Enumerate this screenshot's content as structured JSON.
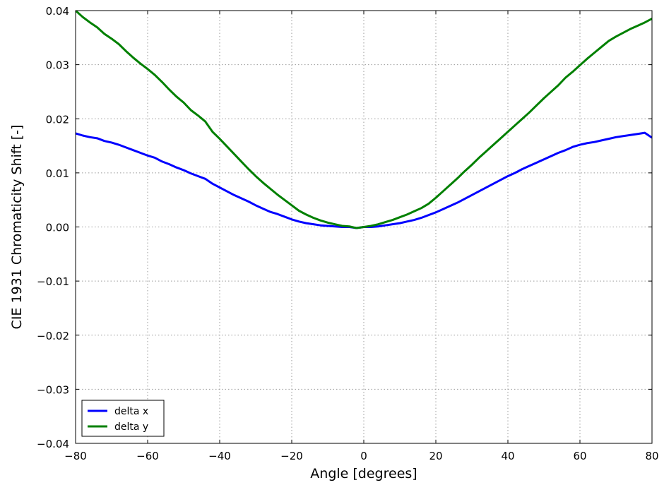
{
  "chart_data": {
    "type": "line",
    "title": "",
    "xlabel": "Angle [degrees]",
    "ylabel": "CIE 1931 Chromaticity Shift  [-]",
    "xlim": [
      -80,
      80
    ],
    "ylim": [
      -0.04,
      0.04
    ],
    "xticks": [
      -80,
      -60,
      -40,
      -20,
      0,
      20,
      40,
      60,
      80
    ],
    "xtick_labels": [
      "−80",
      "−60",
      "−40",
      "−20",
      "0",
      "20",
      "40",
      "60",
      "80"
    ],
    "yticks": [
      -0.04,
      -0.03,
      -0.02,
      -0.01,
      0.0,
      0.01,
      0.02,
      0.03,
      0.04
    ],
    "ytick_labels": [
      "−0.04",
      "−0.03",
      "−0.02",
      "−0.01",
      "0.00",
      "0.01",
      "0.02",
      "0.03",
      "0.04"
    ],
    "grid": true,
    "legend_position": "lower-left",
    "series": [
      {
        "name": "delta x",
        "color": "#0000ff",
        "x": [
          -80,
          -78,
          -76,
          -74,
          -72,
          -70,
          -68,
          -66,
          -64,
          -62,
          -60,
          -58,
          -56,
          -54,
          -52,
          -50,
          -48,
          -46,
          -44,
          -42,
          -40,
          -38,
          -36,
          -34,
          -32,
          -30,
          -28,
          -26,
          -24,
          -22,
          -20,
          -18,
          -16,
          -14,
          -12,
          -10,
          -8,
          -6,
          -4,
          -2,
          0,
          2,
          4,
          6,
          8,
          10,
          12,
          14,
          16,
          18,
          20,
          22,
          24,
          26,
          28,
          30,
          32,
          34,
          36,
          38,
          40,
          42,
          44,
          46,
          48,
          50,
          52,
          54,
          56,
          58,
          60,
          62,
          64,
          66,
          68,
          70,
          72,
          74,
          76,
          78,
          80
        ],
        "y": [
          0.0173,
          0.0169,
          0.0166,
          0.0164,
          0.0159,
          0.0156,
          0.0152,
          0.0147,
          0.0142,
          0.0137,
          0.0132,
          0.0128,
          0.0121,
          0.0116,
          0.011,
          0.0105,
          0.0099,
          0.0094,
          0.0089,
          0.008,
          0.0073,
          0.0066,
          0.0059,
          0.0053,
          0.0047,
          0.004,
          0.0034,
          0.0028,
          0.0024,
          0.0019,
          0.0014,
          0.001,
          0.0007,
          0.0005,
          0.0003,
          0.0002,
          0.0001,
          0.0,
          0.0,
          -0.0002,
          0.0,
          0.0,
          0.0001,
          0.0003,
          0.0005,
          0.0007,
          0.001,
          0.0013,
          0.0017,
          0.0022,
          0.0027,
          0.0033,
          0.0039,
          0.0045,
          0.0052,
          0.0059,
          0.0066,
          0.0073,
          0.008,
          0.0087,
          0.0094,
          0.01,
          0.0107,
          0.0113,
          0.0119,
          0.0125,
          0.0131,
          0.0137,
          0.0142,
          0.0148,
          0.0152,
          0.0155,
          0.0157,
          0.016,
          0.0163,
          0.0166,
          0.0168,
          0.017,
          0.0172,
          0.0174,
          0.0165
        ]
      },
      {
        "name": "delta y",
        "color": "#008000",
        "x": [
          -80,
          -78,
          -76,
          -74,
          -72,
          -70,
          -68,
          -66,
          -64,
          -62,
          -60,
          -58,
          -56,
          -54,
          -52,
          -50,
          -48,
          -46,
          -44,
          -42,
          -40,
          -38,
          -36,
          -34,
          -32,
          -30,
          -28,
          -26,
          -24,
          -22,
          -20,
          -18,
          -16,
          -14,
          -12,
          -10,
          -8,
          -6,
          -4,
          -2,
          0,
          2,
          4,
          6,
          8,
          10,
          12,
          14,
          16,
          18,
          20,
          22,
          24,
          26,
          28,
          30,
          32,
          34,
          36,
          38,
          40,
          42,
          44,
          46,
          48,
          50,
          52,
          54,
          56,
          58,
          60,
          62,
          64,
          66,
          68,
          70,
          72,
          74,
          76,
          78,
          80
        ],
        "y": [
          0.04,
          0.0388,
          0.0378,
          0.0369,
          0.0357,
          0.0348,
          0.0338,
          0.0325,
          0.0313,
          0.0302,
          0.0292,
          0.0281,
          0.0268,
          0.0254,
          0.0241,
          0.023,
          0.0216,
          0.0206,
          0.0195,
          0.0176,
          0.0163,
          0.0149,
          0.0135,
          0.0121,
          0.0107,
          0.0094,
          0.0082,
          0.0071,
          0.006,
          0.005,
          0.004,
          0.003,
          0.0023,
          0.0017,
          0.0012,
          0.0008,
          0.0005,
          0.0002,
          0.0001,
          -0.0002,
          0.0,
          0.0002,
          0.0005,
          0.0009,
          0.0013,
          0.0018,
          0.0023,
          0.0029,
          0.0035,
          0.0043,
          0.0054,
          0.0066,
          0.0078,
          0.009,
          0.0103,
          0.0115,
          0.0128,
          0.014,
          0.0152,
          0.0164,
          0.0176,
          0.0188,
          0.02,
          0.0212,
          0.0225,
          0.0238,
          0.025,
          0.0262,
          0.0276,
          0.0287,
          0.0299,
          0.0311,
          0.0322,
          0.0333,
          0.0344,
          0.0352,
          0.0359,
          0.0366,
          0.0372,
          0.0378,
          0.0385
        ]
      }
    ]
  }
}
